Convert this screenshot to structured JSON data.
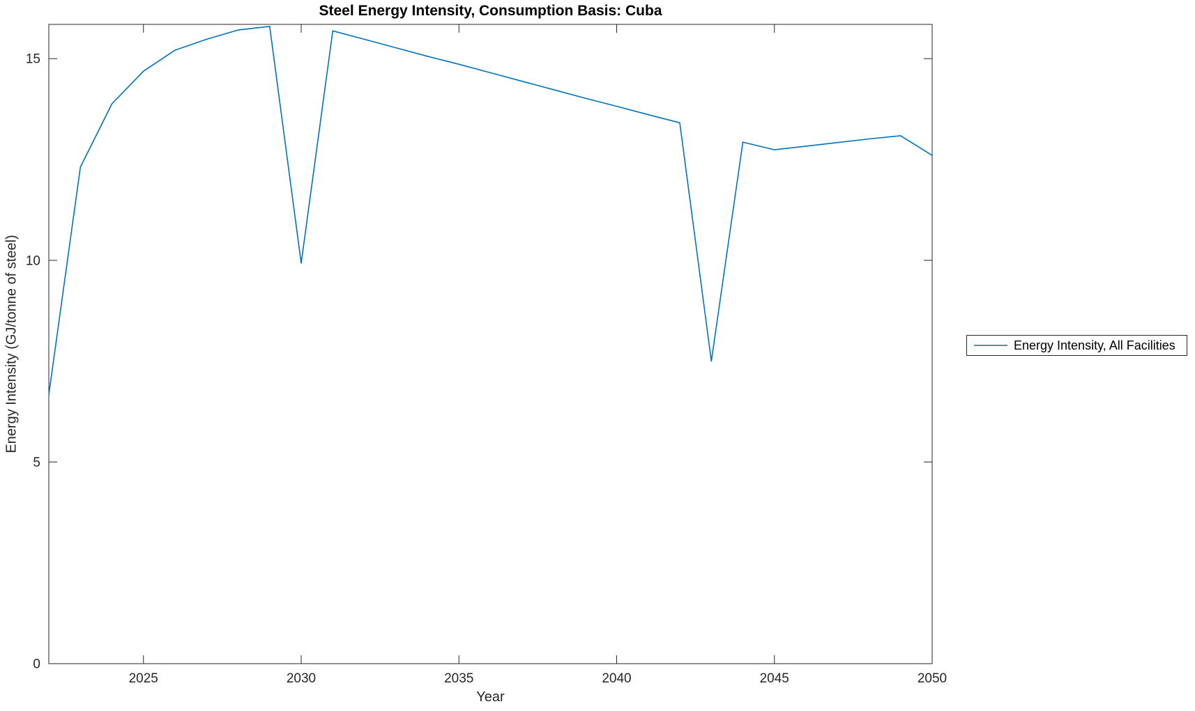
{
  "window": {
    "background": "#ffffff"
  },
  "chart_data": {
    "type": "line",
    "title": "Steel Energy Intensity, Consumption Basis: Cuba",
    "xlabel": "Year",
    "ylabel": "Energy Intensity (GJ/tonne of steel)",
    "xlim": [
      2022,
      2050
    ],
    "ylim": [
      0,
      15.85
    ],
    "x_ticks": [
      2025,
      2030,
      2035,
      2040,
      2045,
      2050
    ],
    "y_ticks": [
      0,
      5,
      10,
      15
    ],
    "grid": false,
    "box": true,
    "axis_color": "#262626",
    "tick_label_color": "#262626",
    "title_color": "#000000",
    "legend": {
      "position": "outside-right-center",
      "entries": [
        "Energy Intensity, All Facilities"
      ]
    },
    "series": [
      {
        "name": "Energy Intensity, All Facilities",
        "color": "#0072BD",
        "x": [
          2022,
          2023,
          2024,
          2025,
          2026,
          2027,
          2028,
          2029,
          2030,
          2031,
          2032,
          2033,
          2034,
          2035,
          2036,
          2037,
          2038,
          2039,
          2040,
          2041,
          2042,
          2043,
          2044,
          2045,
          2046,
          2047,
          2048,
          2049,
          2050
        ],
        "y": [
          6.67,
          12.31,
          13.88,
          14.69,
          15.21,
          15.48,
          15.71,
          15.8,
          9.93,
          15.69,
          15.48,
          15.27,
          15.06,
          14.86,
          14.65,
          14.44,
          14.23,
          14.02,
          13.82,
          13.61,
          13.41,
          7.5,
          12.93,
          12.74,
          12.83,
          12.92,
          13.01,
          13.09,
          12.6
        ]
      }
    ]
  }
}
